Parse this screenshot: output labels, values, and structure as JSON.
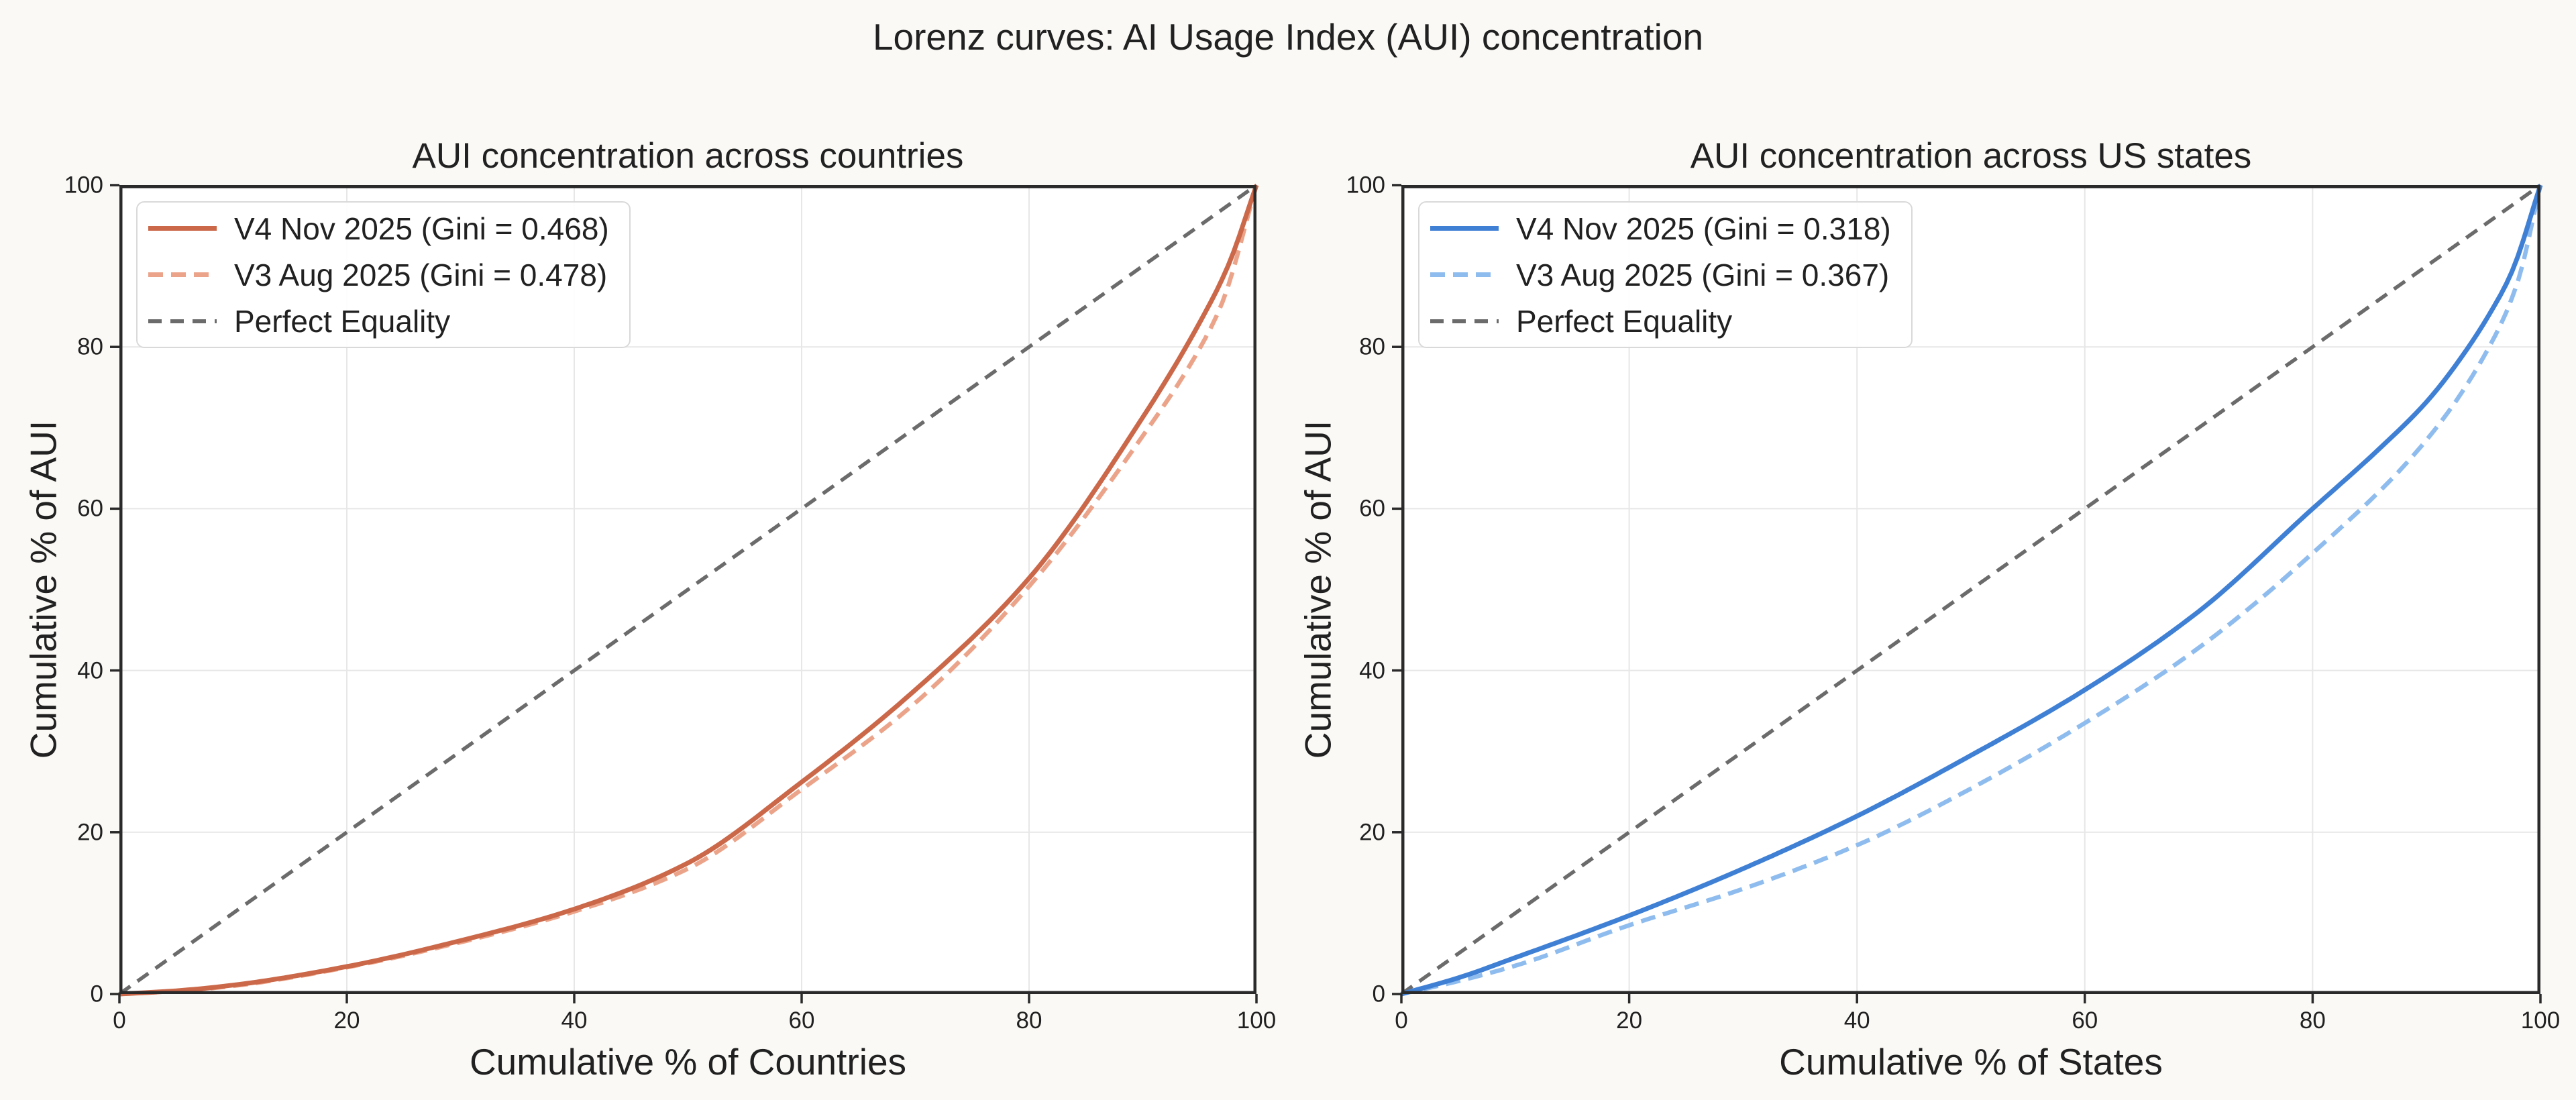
{
  "figure": {
    "title": "Lorenz curves: AI Usage Index (AUI) concentration",
    "background": "#FAF9F5",
    "plot_background": "#FFFFFF",
    "text_color": "#212121",
    "spine_color": "#2A2A2A",
    "grid_color": "#E7E7E7",
    "legend_border_color": "#D9D9D9"
  },
  "chart_data": [
    {
      "type": "line",
      "title": "AUI concentration across countries",
      "xlabel": "Cumulative % of Countries",
      "ylabel": "Cumulative % of AUI",
      "xlim": [
        0,
        100
      ],
      "ylim": [
        0,
        100
      ],
      "xticks": [
        "0",
        "20",
        "40",
        "60",
        "80",
        "100"
      ],
      "yticks": [
        "0",
        "20",
        "40",
        "60",
        "80",
        "100"
      ],
      "grid": true,
      "legend_position": "upper-left",
      "series": [
        {
          "name": "V4 Nov 2025 (Gini = 0.468)",
          "color": "#CB6849",
          "dash": null,
          "width": 7,
          "points": [
            [
              0,
              0
            ],
            [
              5,
              0.4
            ],
            [
              10,
              1.1
            ],
            [
              20,
              3.4
            ],
            [
              30,
              6.6
            ],
            [
              40,
              10.5
            ],
            [
              50,
              16.2
            ],
            [
              60,
              26.2
            ],
            [
              70,
              37.6
            ],
            [
              80,
              51.4
            ],
            [
              90,
              71.3
            ],
            [
              95,
              83.0
            ],
            [
              97.5,
              90.0
            ],
            [
              100,
              100
            ]
          ]
        },
        {
          "name": "V3 Aug 2025 (Gini = 0.478)",
          "color": "#EBA48A",
          "dash": [
            22,
            12
          ],
          "width": 6.5,
          "points": [
            [
              0,
              0
            ],
            [
              5,
              0.35
            ],
            [
              10,
              1.0
            ],
            [
              20,
              3.3
            ],
            [
              30,
              6.4
            ],
            [
              40,
              10.2
            ],
            [
              50,
              15.5
            ],
            [
              60,
              25.3
            ],
            [
              70,
              36.0
            ],
            [
              80,
              50.4
            ],
            [
              90,
              69.0
            ],
            [
              95,
              79.8
            ],
            [
              97,
              85.5
            ],
            [
              100,
              100
            ]
          ]
        },
        {
          "name": "Perfect Equality",
          "color": "#6B6B6B",
          "dash": [
            20,
            13
          ],
          "width": 5.5,
          "points": [
            [
              0,
              0
            ],
            [
              100,
              100
            ]
          ]
        }
      ]
    },
    {
      "type": "line",
      "title": "AUI concentration across US states",
      "xlabel": "Cumulative % of States",
      "ylabel": "Cumulative % of AUI",
      "xlim": [
        0,
        100
      ],
      "ylim": [
        0,
        100
      ],
      "xticks": [
        "0",
        "20",
        "40",
        "60",
        "80",
        "100"
      ],
      "yticks": [
        "0",
        "20",
        "40",
        "60",
        "80",
        "100"
      ],
      "grid": true,
      "legend_position": "upper-left",
      "series": [
        {
          "name": "V4 Nov 2025 (Gini = 0.318)",
          "color": "#3F80D5",
          "dash": null,
          "width": 7,
          "points": [
            [
              0,
              0
            ],
            [
              5,
              2
            ],
            [
              10,
              4.5
            ],
            [
              20,
              9.7
            ],
            [
              30,
              15.5
            ],
            [
              40,
              22
            ],
            [
              50,
              29.5
            ],
            [
              60,
              37.6
            ],
            [
              70,
              47.3
            ],
            [
              80,
              60
            ],
            [
              86,
              67.6
            ],
            [
              90,
              73.2
            ],
            [
              93,
              78.6
            ],
            [
              95.5,
              84
            ],
            [
              97.5,
              89.3
            ],
            [
              100,
              100
            ]
          ]
        },
        {
          "name": "V3 Aug 2025 (Gini = 0.367)",
          "color": "#8FBCEE",
          "dash": [
            22,
            12
          ],
          "width": 6.5,
          "points": [
            [
              0,
              0
            ],
            [
              5,
              1.6
            ],
            [
              10,
              3.5
            ],
            [
              20,
              8.5
            ],
            [
              30,
              13.0
            ],
            [
              40,
              18.4
            ],
            [
              50,
              25.4
            ],
            [
              60,
              33.5
            ],
            [
              70,
              42.8
            ],
            [
              80,
              54.5
            ],
            [
              90,
              68.5
            ],
            [
              95.5,
              80
            ],
            [
              98,
              88
            ],
            [
              100,
              100
            ]
          ]
        },
        {
          "name": "Perfect Equality",
          "color": "#6B6B6B",
          "dash": [
            20,
            13
          ],
          "width": 5.5,
          "points": [
            [
              0,
              0
            ],
            [
              100,
              100
            ]
          ]
        }
      ]
    }
  ]
}
